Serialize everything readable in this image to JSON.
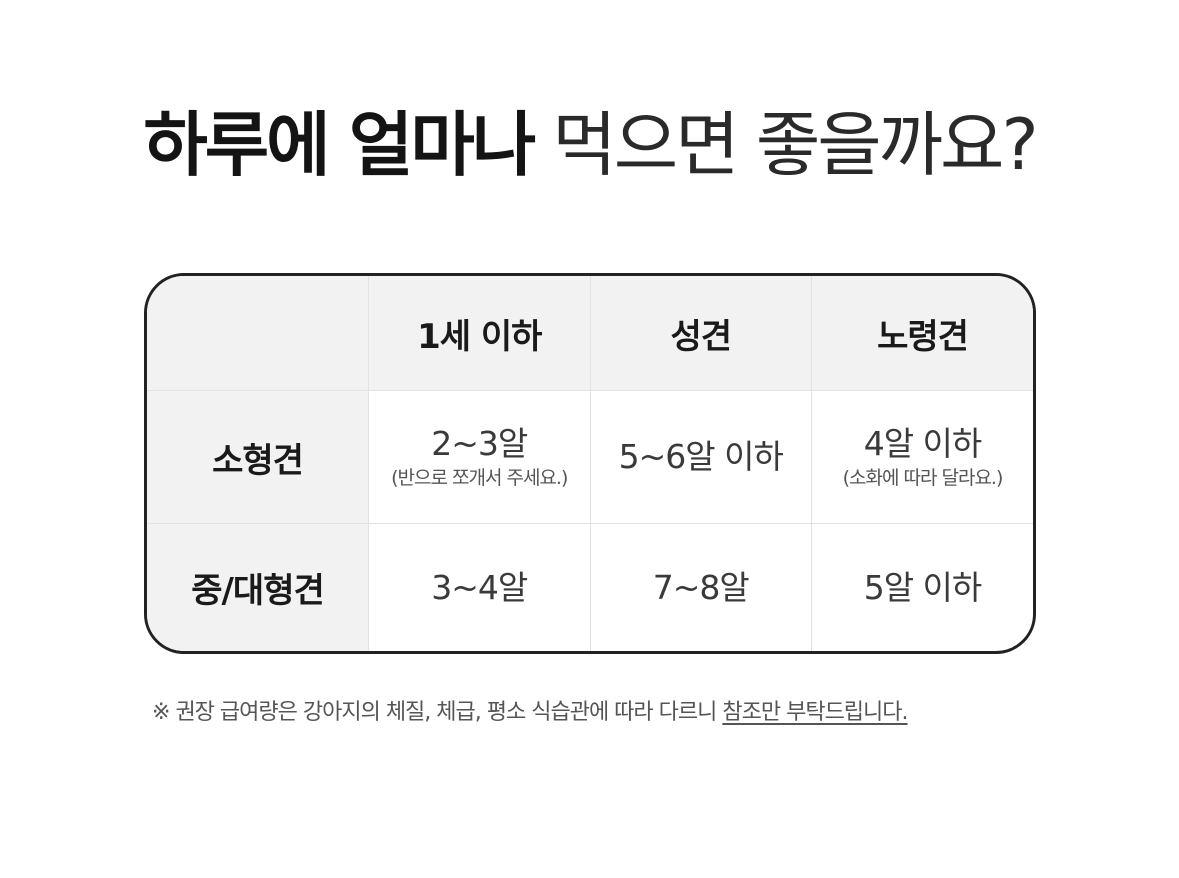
{
  "title": {
    "bold": "하루에 얼마나",
    "light": "먹으면 좋을까요?"
  },
  "table": {
    "columns": [
      "1세 이하",
      "성견",
      "노령견"
    ],
    "rows": [
      {
        "label": "소형견",
        "cells": [
          {
            "main": "2~3알",
            "note": "(반으로 쪼개서 주세요.)"
          },
          {
            "main": "5~6알 이하",
            "note": ""
          },
          {
            "main": "4알 이하",
            "note": "(소화에 따라 달라요.)"
          }
        ]
      },
      {
        "label": "중/대형견",
        "cells": [
          {
            "main": "3~4알",
            "note": ""
          },
          {
            "main": "7~8알",
            "note": ""
          },
          {
            "main": "5알 이하",
            "note": ""
          }
        ]
      }
    ]
  },
  "footnote": {
    "mark": "※",
    "text": "권장 급여량은 강아지의 체질, 체급, 평소 식습관에 따라 다르니",
    "underlined": "참조만 부탁드립니다."
  }
}
